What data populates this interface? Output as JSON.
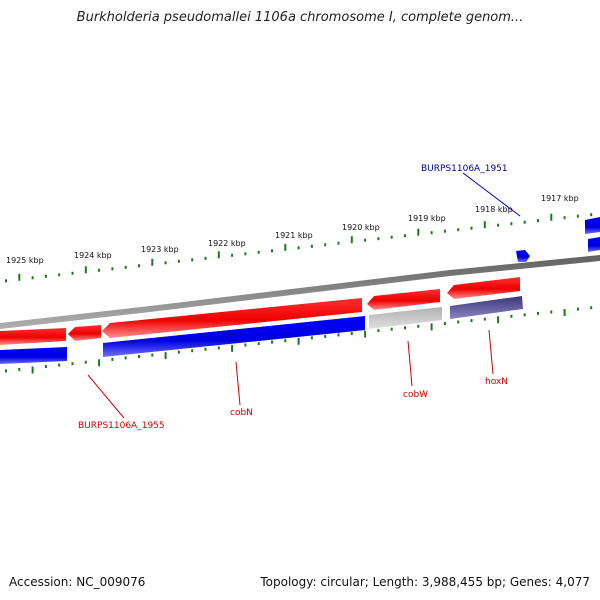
{
  "title": "Burkholderia pseudomallei 1106a chromosome I, complete genom...",
  "footer": {
    "accession": "Accession: NC_009076",
    "summary": "Topology: circular; Length: 3,988,455 bp; Genes: 4,077"
  },
  "colors": {
    "forward": "#ff0000",
    "reverse": "#0000ff",
    "pseudo": "#c0c0c0",
    "other": "#4a4090",
    "tick": "#1a7a1a",
    "backbone": "#808080",
    "label_red": "#cc0000",
    "label_blue": "#000099"
  },
  "ruler": {
    "unit": "kbp",
    "labels": [
      "1925 kbp",
      "1924 kbp",
      "1923 kbp",
      "1922 kbp",
      "1921 kbp",
      "1920 kbp",
      "1919 kbp",
      "1918 kbp",
      "1917 kbp"
    ]
  },
  "gene_labels": [
    {
      "text": "BURPS1106A_1951",
      "color": "blue"
    },
    {
      "text": "BURPS1106A_1955",
      "color": "red"
    },
    {
      "text": "cobN",
      "color": "red"
    },
    {
      "text": "cobW",
      "color": "red"
    },
    {
      "text": "hoxN",
      "color": "red"
    }
  ]
}
